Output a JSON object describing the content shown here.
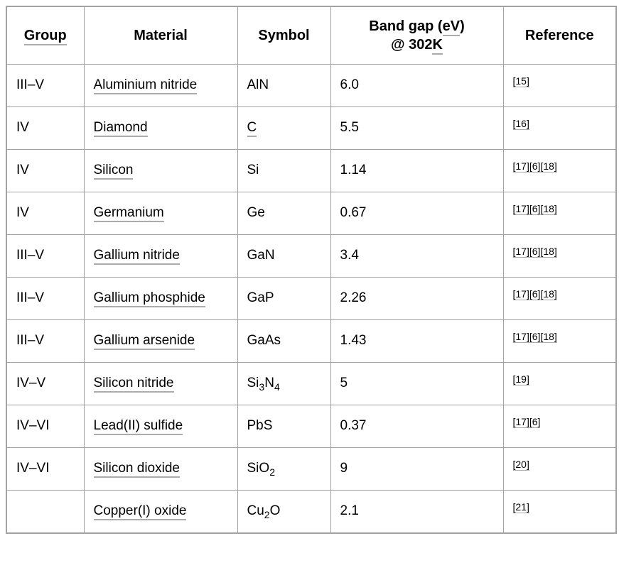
{
  "colors": {
    "border": "#a2a2a2",
    "link_underline": "#ababab",
    "text": "#000000",
    "background": "#ffffff"
  },
  "header": {
    "group": "Group",
    "material": "Material",
    "symbol": "Symbol",
    "bandgap_line1_pre": "Band gap (",
    "bandgap_ev": "eV",
    "bandgap_line1_post": ")",
    "bandgap_line2_pre": "@ 302",
    "bandgap_kelvin": "K",
    "reference": "Reference"
  },
  "rows": [
    {
      "group": "III–V",
      "material": "Aluminium nitride",
      "symbol_parts": [
        {
          "t": "AlN"
        }
      ],
      "symbol_is_link": false,
      "bandgap": "6.0",
      "references": [
        "[15]"
      ]
    },
    {
      "group": "IV",
      "material": "Diamond",
      "symbol_parts": [
        {
          "t": "C"
        }
      ],
      "symbol_is_link": true,
      "bandgap": "5.5",
      "references": [
        "[16]"
      ]
    },
    {
      "group": "IV",
      "material": "Silicon",
      "symbol_parts": [
        {
          "t": "Si"
        }
      ],
      "symbol_is_link": false,
      "bandgap": "1.14",
      "references": [
        "[17]",
        "[6]",
        "[18]"
      ]
    },
    {
      "group": "IV",
      "material": "Germanium",
      "symbol_parts": [
        {
          "t": "Ge"
        }
      ],
      "symbol_is_link": false,
      "bandgap": "0.67",
      "references": [
        "[17]",
        "[6]",
        "[18]"
      ]
    },
    {
      "group": "III–V",
      "material": "Gallium nitride",
      "symbol_parts": [
        {
          "t": "GaN"
        }
      ],
      "symbol_is_link": false,
      "bandgap": "3.4",
      "references": [
        "[17]",
        "[6]",
        "[18]"
      ]
    },
    {
      "group": "III–V",
      "material": "Gallium phosphide",
      "symbol_parts": [
        {
          "t": "GaP"
        }
      ],
      "symbol_is_link": false,
      "bandgap": "2.26",
      "references": [
        "[17]",
        "[6]",
        "[18]"
      ]
    },
    {
      "group": "III–V",
      "material": "Gallium arsenide",
      "symbol_parts": [
        {
          "t": "GaAs"
        }
      ],
      "symbol_is_link": false,
      "bandgap": "1.43",
      "references": [
        "[17]",
        "[6]",
        "[18]"
      ]
    },
    {
      "group": "IV–V",
      "material": "Silicon nitride",
      "symbol_parts": [
        {
          "t": "Si"
        },
        {
          "sub": "3"
        },
        {
          "t": "N"
        },
        {
          "sub": "4"
        }
      ],
      "symbol_is_link": false,
      "bandgap": "5",
      "references": [
        "[19]"
      ]
    },
    {
      "group": "IV–VI",
      "material": "Lead(II) sulfide",
      "symbol_parts": [
        {
          "t": "PbS"
        }
      ],
      "symbol_is_link": false,
      "bandgap": "0.37",
      "references": [
        "[17]",
        "[6]"
      ]
    },
    {
      "group": "IV–VI",
      "material": "Silicon dioxide",
      "symbol_parts": [
        {
          "t": "SiO"
        },
        {
          "sub": "2"
        }
      ],
      "symbol_is_link": false,
      "bandgap": "9",
      "references": [
        "[20]"
      ]
    },
    {
      "group": "",
      "material": "Copper(I) oxide",
      "symbol_parts": [
        {
          "t": "Cu"
        },
        {
          "sub": "2"
        },
        {
          "t": "O"
        }
      ],
      "symbol_is_link": false,
      "bandgap": "2.1",
      "references": [
        "[21]"
      ]
    }
  ],
  "chart_data": {
    "type": "table",
    "title": "",
    "columns": [
      "Group",
      "Material",
      "Symbol",
      "Band gap (eV) @ 302K",
      "Reference"
    ],
    "rows": [
      [
        "III–V",
        "Aluminium nitride",
        "AlN",
        "6.0",
        "[15]"
      ],
      [
        "IV",
        "Diamond",
        "C",
        "5.5",
        "[16]"
      ],
      [
        "IV",
        "Silicon",
        "Si",
        "1.14",
        "[17][6][18]"
      ],
      [
        "IV",
        "Germanium",
        "Ge",
        "0.67",
        "[17][6][18]"
      ],
      [
        "III–V",
        "Gallium nitride",
        "GaN",
        "3.4",
        "[17][6][18]"
      ],
      [
        "III–V",
        "Gallium phosphide",
        "GaP",
        "2.26",
        "[17][6][18]"
      ],
      [
        "III–V",
        "Gallium arsenide",
        "GaAs",
        "1.43",
        "[17][6][18]"
      ],
      [
        "IV–V",
        "Silicon nitride",
        "Si3N4",
        "5",
        "[19]"
      ],
      [
        "IV–VI",
        "Lead(II) sulfide",
        "PbS",
        "0.37",
        "[17][6]"
      ],
      [
        "IV–VI",
        "Silicon dioxide",
        "SiO2",
        "9",
        "[20]"
      ],
      [
        "",
        "Copper(I) oxide",
        "Cu2O",
        "2.1",
        "[21]"
      ]
    ]
  }
}
